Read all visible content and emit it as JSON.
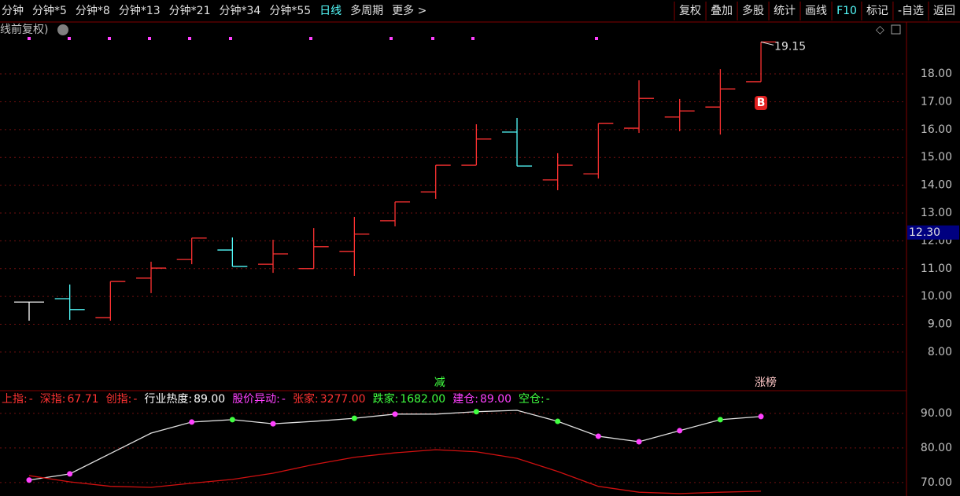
{
  "toolbar": {
    "left": [
      "分钟",
      "分钟*5",
      "分钟*8",
      "分钟*13",
      "分钟*21",
      "分钟*34",
      "分钟*55",
      "日线",
      "多周期",
      "更多 >"
    ],
    "active": "日线",
    "right": [
      "复权",
      "叠加",
      "多股",
      "统计",
      "画线",
      "F10",
      "标记",
      "-自选",
      "返回"
    ],
    "highlight": "F10"
  },
  "chart_data": [
    {
      "type": "ohlc",
      "title": "线前复权)",
      "open": [
        9.8,
        9.92,
        9.24,
        10.66,
        11.33,
        11.67,
        11.16,
        11.0,
        11.62,
        12.72,
        13.76,
        14.72,
        15.91,
        14.19,
        14.41,
        16.05,
        16.45,
        16.81,
        17.72
      ],
      "high": [
        9.8,
        10.43,
        10.54,
        11.25,
        12.1,
        12.12,
        12.04,
        12.46,
        12.86,
        13.4,
        14.72,
        16.19,
        16.42,
        15.15,
        16.22,
        17.77,
        17.1,
        18.17,
        19.15
      ],
      "low": [
        9.13,
        9.16,
        9.13,
        10.12,
        11.16,
        11.08,
        10.85,
        11.0,
        10.74,
        12.52,
        13.51,
        14.72,
        14.69,
        13.82,
        14.24,
        15.88,
        15.94,
        15.82,
        17.72
      ],
      "close": [
        9.8,
        9.53,
        10.54,
        11.02,
        12.1,
        11.08,
        11.53,
        11.79,
        12.24,
        13.4,
        14.72,
        15.66,
        14.69,
        14.72,
        16.22,
        17.12,
        16.67,
        17.46,
        19.15
      ],
      "colors": {
        "up": "#ff3232",
        "down": "#54fcfc",
        "flat": "#ffffff"
      },
      "ylim": [
        6.67,
        19.81
      ],
      "yticks": [
        {
          "value": 8,
          "label": "8.00"
        },
        {
          "value": 9,
          "label": "9.00"
        },
        {
          "value": 10,
          "label": "10.00"
        },
        {
          "value": 11,
          "label": "11.00"
        },
        {
          "value": 12,
          "label": "12.00"
        },
        {
          "value": 13,
          "label": "13.00"
        },
        {
          "value": 14,
          "label": "14.00"
        },
        {
          "value": 15,
          "label": "15.00"
        },
        {
          "value": 16,
          "label": "16.00"
        },
        {
          "value": 17,
          "label": "17.00"
        },
        {
          "value": 18,
          "label": "18.00"
        }
      ],
      "grid": true,
      "cursor_price": {
        "value": 12.3,
        "label": "12.30"
      },
      "max_label": "19.15",
      "buy_label": "B",
      "signal_left": "减",
      "signal_right": "涨榜"
    },
    {
      "type": "line",
      "legend_items": [
        {
          "text": "上指:",
          "value": "-",
          "color": "#ff3232"
        },
        {
          "text": "深指:",
          "value": "67.71",
          "color": "#ff3232"
        },
        {
          "text": "创指:",
          "value": "-",
          "color": "#ff3232"
        },
        {
          "text": "行业热度:",
          "value": "89.00",
          "color": "#ffffff"
        },
        {
          "text": "股价异动:",
          "value": "-",
          "color": "#ff40ff"
        },
        {
          "text": "张家:",
          "value": "3277.00",
          "color": "#ff3232"
        },
        {
          "text": "跌家:",
          "value": "1682.00",
          "color": "#40ff40"
        },
        {
          "text": "建仓:",
          "value": "89.00",
          "color": "#ff40ff"
        },
        {
          "text": "空仓:",
          "value": "-",
          "color": "#40ff40"
        }
      ],
      "series": [
        {
          "color": "#e0e0e0",
          "values": [
            70.7,
            72.5,
            78.4,
            84.3,
            87.5,
            88.2,
            87.0,
            87.7,
            88.6,
            89.8,
            89.8,
            90.5,
            90.9,
            87.7,
            83.4,
            81.8,
            85.0,
            88.2,
            89.1
          ],
          "dot_colors": [
            "#ff40ff",
            "#ff40ff",
            null,
            null,
            "#ff40ff",
            "#40ff40",
            "#ff40ff",
            null,
            "#40ff40",
            "#ff40ff",
            null,
            "#40ff40",
            null,
            "#40ff40",
            "#ff40ff",
            "#ff40ff",
            "#ff40ff",
            "#40ff40",
            "#ff40ff"
          ]
        },
        {
          "color": "#d01010",
          "values": [
            72.0,
            70.2,
            68.9,
            68.6,
            69.8,
            70.9,
            72.7,
            75.2,
            77.3,
            78.6,
            79.5,
            78.9,
            77.0,
            73.2,
            68.9,
            67.2,
            66.8,
            67.2,
            67.5
          ]
        }
      ],
      "ylim": [
        66.1,
        95.9
      ],
      "yticks": [
        {
          "value": 70,
          "label": "70.00"
        },
        {
          "value": 80,
          "label": "80.00"
        },
        {
          "value": 90,
          "label": "90.00"
        }
      ],
      "grid": true
    }
  ]
}
